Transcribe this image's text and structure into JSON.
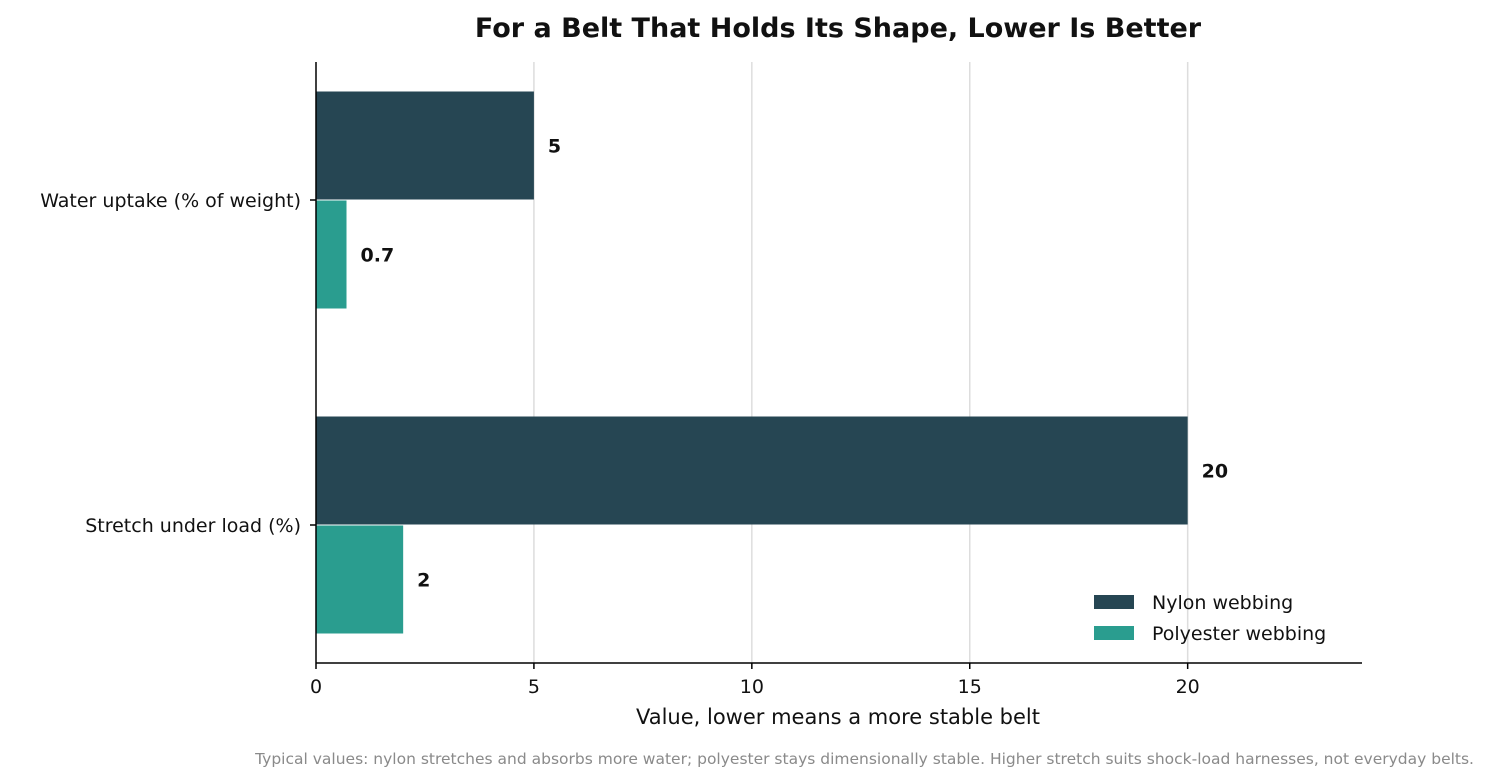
{
  "chart_data": {
    "type": "bar",
    "orientation": "horizontal",
    "title": "For a Belt That Holds Its Shape, Lower Is Better",
    "xlabel": "Value, lower means a more stable belt",
    "ylabel": "",
    "categories": [
      "Water uptake (% of weight)",
      "Stretch under load (%)"
    ],
    "series": [
      {
        "name": "Nylon webbing",
        "values": [
          5,
          20
        ],
        "labels": [
          "5",
          "20"
        ],
        "color": "#264653"
      },
      {
        "name": "Polyester webbing",
        "values": [
          0.7,
          2
        ],
        "labels": [
          "0.7",
          "2"
        ],
        "color": "#2a9d8f"
      }
    ],
    "xlim": [
      0,
      24
    ],
    "xticks": [
      0,
      5,
      10,
      15,
      20
    ],
    "xtick_labels": [
      "0",
      "5",
      "10",
      "15",
      "20"
    ],
    "grid": "vertical",
    "legend_position": "bottom-right",
    "footnote": "Typical values: nylon stretches and absorbs more water; polyester stays dimensionally stable. Higher stretch suits shock-load harnesses, not everyday belts."
  }
}
